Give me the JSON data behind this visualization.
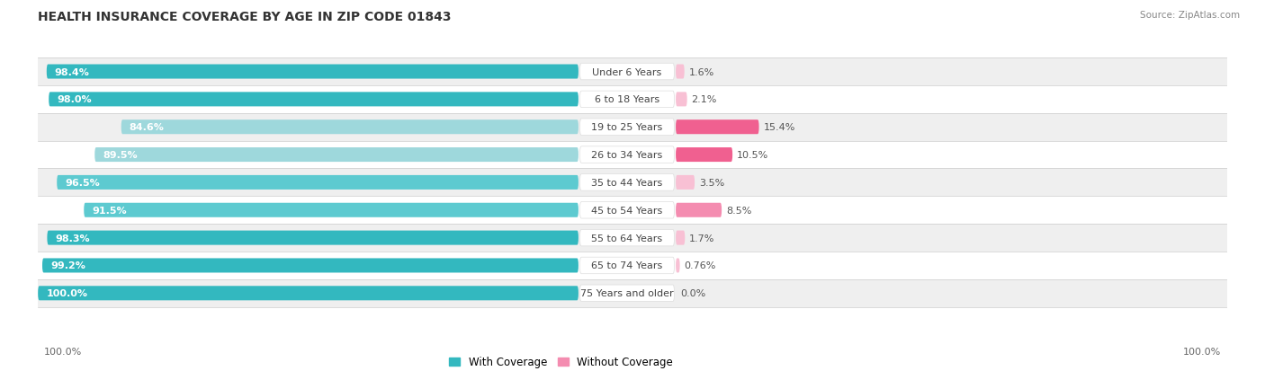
{
  "title": "HEALTH INSURANCE COVERAGE BY AGE IN ZIP CODE 01843",
  "source": "Source: ZipAtlas.com",
  "categories": [
    "Under 6 Years",
    "6 to 18 Years",
    "19 to 25 Years",
    "26 to 34 Years",
    "35 to 44 Years",
    "45 to 54 Years",
    "55 to 64 Years",
    "65 to 74 Years",
    "75 Years and older"
  ],
  "with_coverage": [
    98.4,
    98.0,
    84.6,
    89.5,
    96.5,
    91.5,
    98.3,
    99.2,
    100.0
  ],
  "without_coverage": [
    1.6,
    2.1,
    15.4,
    10.5,
    3.5,
    8.5,
    1.7,
    0.76,
    0.0
  ],
  "with_coverage_labels": [
    "98.4%",
    "98.0%",
    "84.6%",
    "89.5%",
    "96.5%",
    "91.5%",
    "98.3%",
    "99.2%",
    "100.0%"
  ],
  "without_coverage_labels": [
    "1.6%",
    "2.1%",
    "15.4%",
    "10.5%",
    "3.5%",
    "8.5%",
    "1.7%",
    "0.76%",
    "0.0%"
  ],
  "color_with_dark": "#33B8BF",
  "color_with_mid": "#5DCAD0",
  "color_with_light": "#9ED8DC",
  "color_without_dark": "#F06090",
  "color_without_mid": "#F48CB0",
  "color_without_light": "#F8C0D4",
  "bg_row_alt": "#EFEFEF",
  "bg_row_white": "#FFFFFF",
  "legend_with": "With Coverage",
  "legend_without": "Without Coverage",
  "axis_label_left": "100.0%",
  "axis_label_right": "100.0%",
  "title_fontsize": 10,
  "bar_label_fontsize": 8,
  "category_fontsize": 8,
  "value_label_fontsize": 8
}
